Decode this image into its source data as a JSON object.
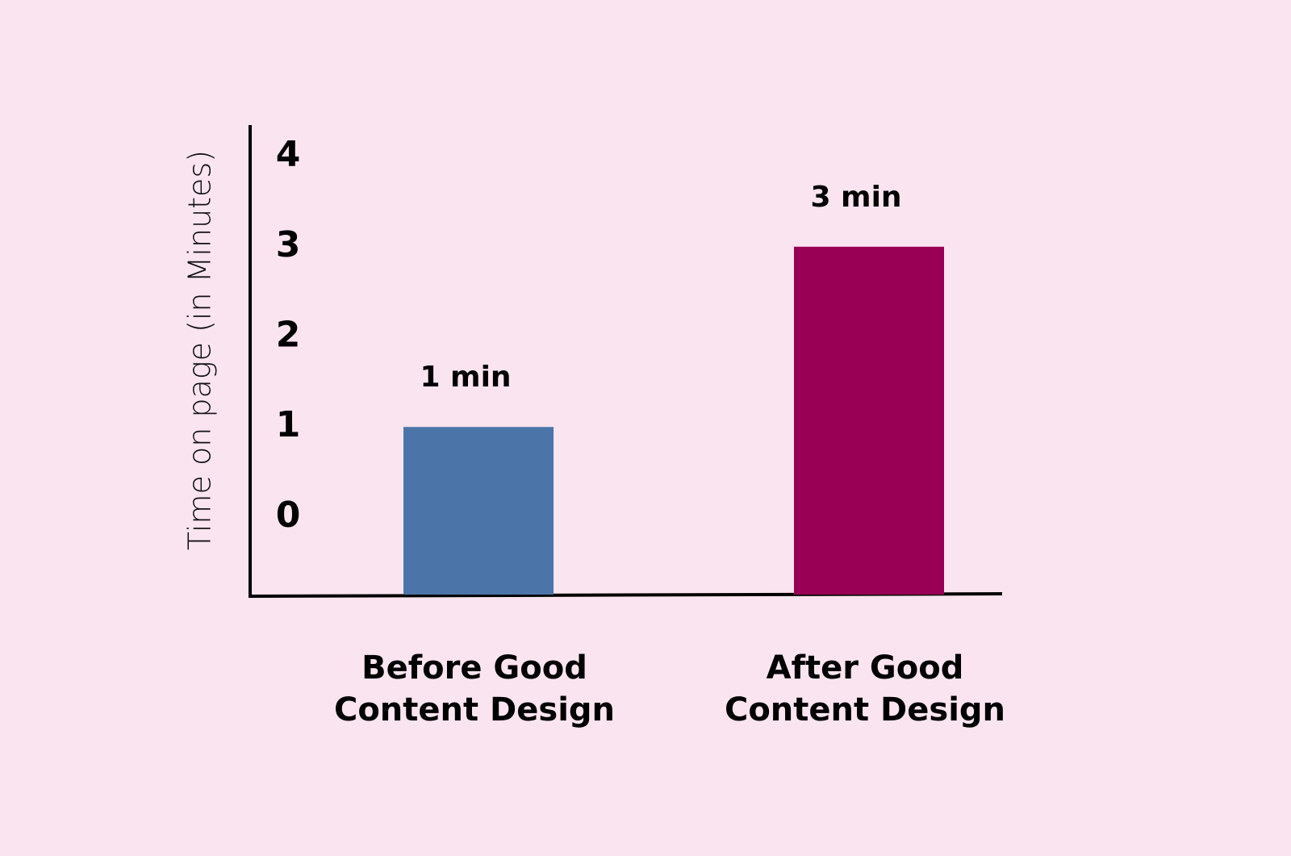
{
  "chart_data": {
    "type": "bar",
    "y_label": "Time on page (in Minutes)",
    "categories": [
      "Before Good\nContent Design",
      "After Good\nContent Design"
    ],
    "values": [
      1,
      3
    ],
    "value_labels": [
      "1 min",
      "3 min"
    ],
    "colors": [
      "#4b75a9",
      "#990055"
    ],
    "ylim": [
      -0.86,
      4.35
    ],
    "yticks": [
      0,
      1,
      2,
      3,
      4
    ],
    "grid": false
  }
}
